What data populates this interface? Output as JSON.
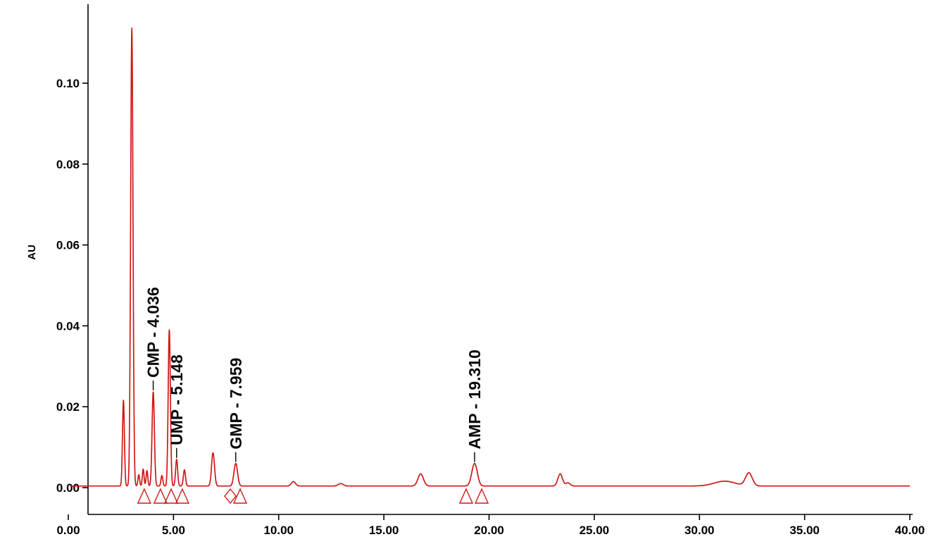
{
  "chart_data": {
    "type": "line",
    "title": "",
    "description": "HPLC chromatogram with labeled nucleotide monophosphate peaks",
    "xlabel": "",
    "ylabel": "AU",
    "xlim": [
      0,
      40
    ],
    "ylim": [
      -0.0075,
      0.118
    ],
    "grid": false,
    "legend": false,
    "x_ticks": {
      "values": [
        0,
        5,
        10,
        15,
        20,
        25,
        30,
        35,
        40
      ],
      "labels": [
        "0.00",
        "5.00",
        "10.00",
        "15.00",
        "20.00",
        "25.00",
        "30.00",
        "35.00",
        "40.00"
      ]
    },
    "y_ticks": {
      "values": [
        0,
        0.02,
        0.04,
        0.06,
        0.08,
        0.1
      ],
      "labels": [
        "0.00",
        "0.02",
        "0.04",
        "0.06",
        "0.08",
        "0.10"
      ]
    },
    "trace_color": "#d01818",
    "axis_color": "#000000",
    "label_color": "#0a0a0a",
    "baseline_au": 0.0004,
    "sampling_step": 0.01,
    "labeled_peaks": [
      {
        "name": "CMP",
        "retention_time": 4.036,
        "label": "CMP - 4.036",
        "height_au": 0.0233
      },
      {
        "name": "UMP",
        "retention_time": 5.148,
        "label": "UMP - 5.148",
        "height_au": 0.0066
      },
      {
        "name": "GMP",
        "retention_time": 7.959,
        "label": "GMP - 7.959",
        "height_au": 0.0056
      },
      {
        "name": "AMP",
        "retention_time": 19.31,
        "label": "AMP - 19.310",
        "height_au": 0.0056
      }
    ],
    "peaks": [
      {
        "t": 2.62,
        "h": 0.0212,
        "sigma": 0.045
      },
      {
        "t": 3.02,
        "h": 0.1132,
        "sigma": 0.055
      },
      {
        "t": 3.35,
        "h": 0.0028,
        "sigma": 0.04
      },
      {
        "t": 3.56,
        "h": 0.0042,
        "sigma": 0.04
      },
      {
        "t": 3.74,
        "h": 0.0038,
        "sigma": 0.04
      },
      {
        "t": 4.036,
        "h": 0.0233,
        "sigma": 0.055,
        "label": "CMP - 4.036"
      },
      {
        "t": 4.45,
        "h": 0.0026,
        "sigma": 0.045
      },
      {
        "t": 4.8,
        "h": 0.0386,
        "sigma": 0.052
      },
      {
        "t": 5.148,
        "h": 0.0066,
        "sigma": 0.05,
        "label": "UMP - 5.148"
      },
      {
        "t": 5.52,
        "h": 0.004,
        "sigma": 0.05
      },
      {
        "t": 6.88,
        "h": 0.0082,
        "sigma": 0.07
      },
      {
        "t": 7.959,
        "h": 0.0056,
        "sigma": 0.085,
        "label": "GMP - 7.959"
      },
      {
        "t": 10.7,
        "h": 0.0011,
        "sigma": 0.1
      },
      {
        "t": 12.95,
        "h": 0.0006,
        "sigma": 0.12
      },
      {
        "t": 16.75,
        "h": 0.003,
        "sigma": 0.13
      },
      {
        "t": 19.31,
        "h": 0.0056,
        "sigma": 0.13,
        "label": "AMP - 19.310"
      },
      {
        "t": 23.38,
        "h": 0.003,
        "sigma": 0.11
      },
      {
        "t": 23.75,
        "h": 0.0008,
        "sigma": 0.1
      },
      {
        "t": 31.2,
        "h": 0.0012,
        "sigma": 0.5
      },
      {
        "t": 32.35,
        "h": 0.0032,
        "sigma": 0.16
      }
    ],
    "integration_markers": [
      {
        "t": 3.61,
        "shape": "triangle"
      },
      {
        "t": 4.38,
        "shape": "triangle"
      },
      {
        "t": 4.89,
        "shape": "triangle"
      },
      {
        "t": 5.42,
        "shape": "triangle"
      },
      {
        "t": 7.7,
        "shape": "diamond"
      },
      {
        "t": 8.17,
        "shape": "triangle"
      },
      {
        "t": 18.91,
        "shape": "triangle"
      },
      {
        "t": 19.65,
        "shape": "triangle"
      }
    ]
  }
}
